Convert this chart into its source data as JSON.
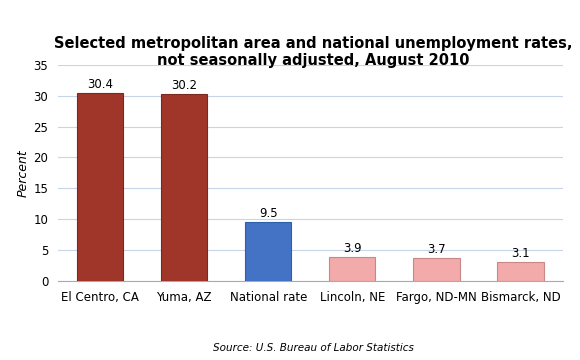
{
  "categories": [
    "El Centro, CA",
    "Yuma, AZ",
    "National rate",
    "Lincoln, NE",
    "Fargo, ND-MN",
    "Bismarck, ND"
  ],
  "values": [
    30.4,
    30.2,
    9.5,
    3.9,
    3.7,
    3.1
  ],
  "bar_colors": [
    "#A0362A",
    "#A0362A",
    "#4472C4",
    "#F2AAAA",
    "#F2AAAA",
    "#F2AAAA"
  ],
  "bar_edgecolors": [
    "#7A2820",
    "#7A2820",
    "#2E5FAA",
    "#C88888",
    "#C88888",
    "#C88888"
  ],
  "title": "Selected metropolitan area and national unemployment rates,\nnot seasonally adjusted, August 2010",
  "ylabel": "Percent",
  "ylim": [
    0,
    35
  ],
  "yticks": [
    0,
    5,
    10,
    15,
    20,
    25,
    30,
    35
  ],
  "source": "Source: U.S. Bureau of Labor Statistics",
  "title_fontsize": 10.5,
  "label_fontsize": 8.5,
  "tick_fontsize": 8.5,
  "ylabel_fontsize": 9,
  "source_fontsize": 7.5,
  "background_color": "#FFFFFF",
  "grid_color": "#C8D4E8"
}
